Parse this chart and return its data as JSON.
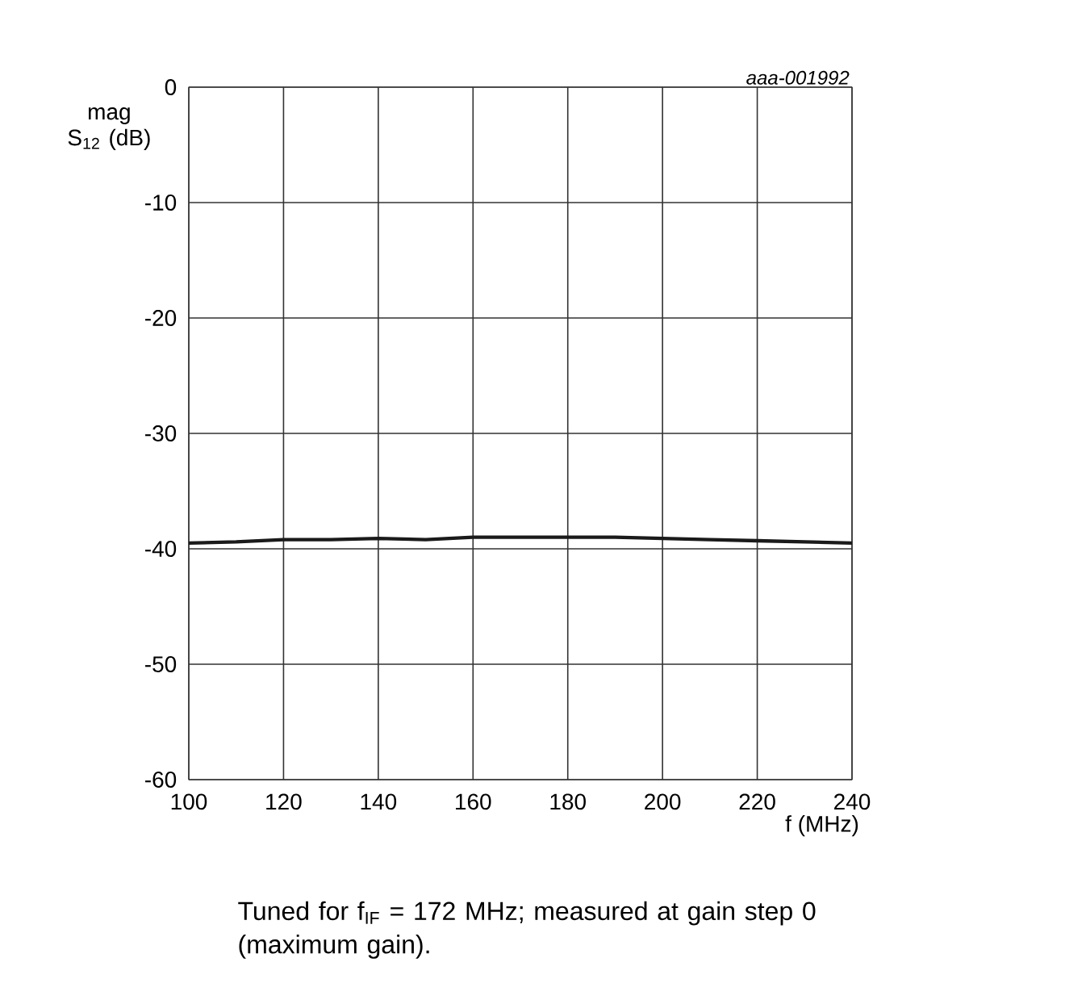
{
  "chart_data": {
    "type": "line",
    "ylabel": "mag S$_{12}$ (dB)",
    "xlabel": "f (MHz)",
    "annotations": [
      "aaa-001992",
      "Tuned for f$_{IF}$ = 172 MHz; measured at gain step 0 (maximum gain)."
    ],
    "x": [
      100,
      110,
      120,
      130,
      140,
      150,
      160,
      170,
      180,
      190,
      200,
      210,
      220,
      230,
      240
    ],
    "series": [
      {
        "color": "#1a1a1a",
        "values": [
          -39.5,
          -39.4,
          -39.2,
          -39.2,
          -39.1,
          -39.2,
          -39.0,
          -39.0,
          -39.0,
          -39.0,
          -39.1,
          -39.2,
          -39.3,
          -39.4,
          -39.5
        ]
      }
    ],
    "xlim": [
      100,
      240
    ],
    "ylim": [
      -60,
      0
    ],
    "xticks": [
      100,
      120,
      140,
      160,
      180,
      200,
      220,
      240
    ],
    "yticks": [
      -60,
      -50,
      -40,
      -30,
      -20,
      -10,
      0
    ],
    "grid": true,
    "marker": "none",
    "line_style": "solid"
  }
}
